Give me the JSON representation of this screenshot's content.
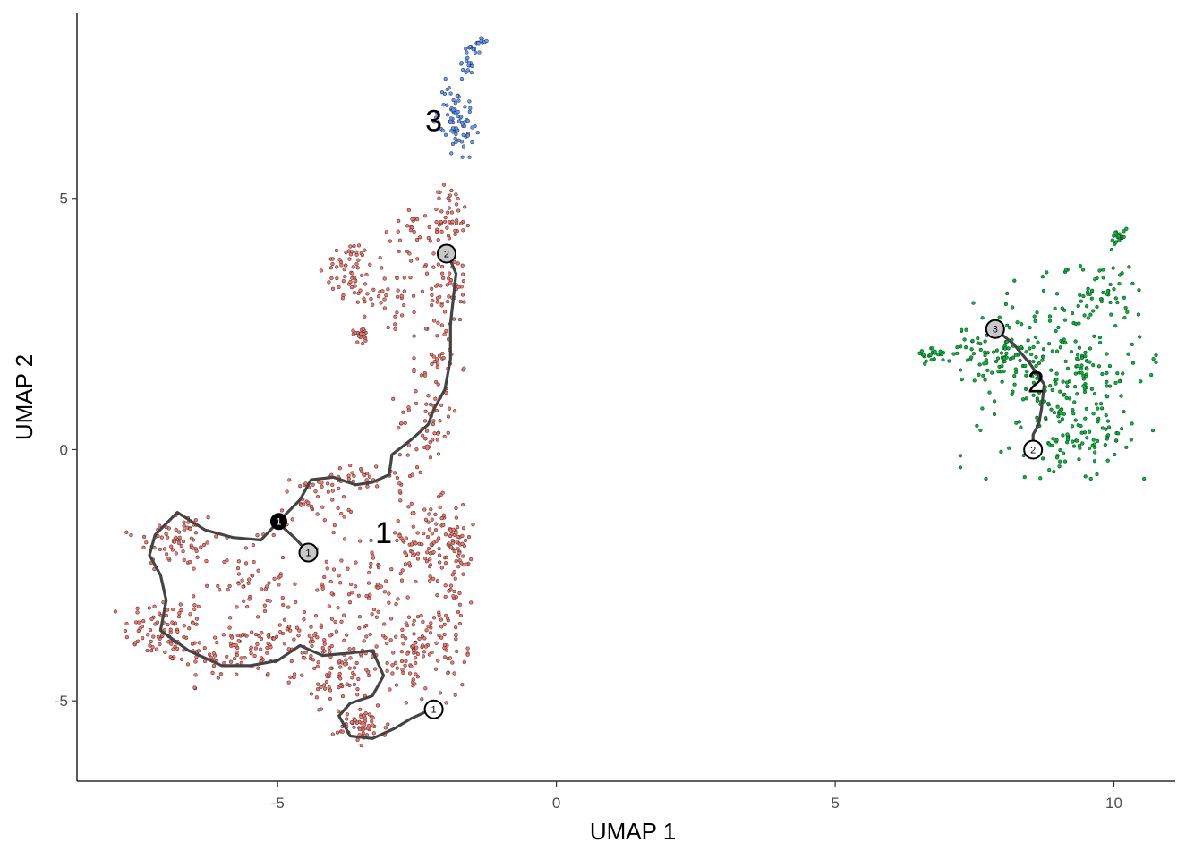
{
  "chart_data": {
    "type": "scatter",
    "title": "",
    "xlabel": "UMAP 1",
    "ylabel": "UMAP 2",
    "xlim": [
      -8.6,
      11.1
    ],
    "ylim": [
      -6.6,
      8.7
    ],
    "x_ticks": [
      -5,
      0,
      5,
      10
    ],
    "y_ticks": [
      -5,
      0,
      5
    ],
    "x_tick_labels": [
      "-5",
      "0",
      "5",
      "10"
    ],
    "y_tick_labels": [
      "-5",
      "0",
      "5"
    ],
    "grid": false,
    "legend": "none",
    "point_outline_color": "#1a1a1a",
    "trajectory_color": "#444444",
    "clusters": [
      {
        "label": "1",
        "label_pos": [
          -3.1,
          -1.65
        ],
        "color": "#F8766D",
        "regions": [
          {
            "cx": -7.0,
            "cy": -3.6,
            "rx": 0.7,
            "ry": 0.6,
            "n": 90
          },
          {
            "cx": -6.8,
            "cy": -1.8,
            "rx": 0.7,
            "ry": 0.6,
            "n": 70
          },
          {
            "cx": -5.8,
            "cy": -4.1,
            "rx": 0.8,
            "ry": 0.5,
            "n": 60
          },
          {
            "cx": -5.6,
            "cy": -2.6,
            "rx": 0.7,
            "ry": 0.7,
            "n": 50
          },
          {
            "cx": -4.8,
            "cy": -3.7,
            "rx": 0.9,
            "ry": 0.6,
            "n": 70
          },
          {
            "cx": -4.3,
            "cy": -1.0,
            "rx": 0.6,
            "ry": 0.5,
            "n": 45
          },
          {
            "cx": -3.9,
            "cy": -4.4,
            "rx": 0.7,
            "ry": 0.6,
            "n": 90
          },
          {
            "cx": -3.5,
            "cy": -5.5,
            "rx": 0.45,
            "ry": 0.3,
            "n": 55
          },
          {
            "cx": -3.6,
            "cy": -2.7,
            "rx": 0.7,
            "ry": 0.8,
            "n": 60
          },
          {
            "cx": -2.5,
            "cy": -4.0,
            "rx": 0.7,
            "ry": 0.8,
            "n": 110
          },
          {
            "cx": -2.4,
            "cy": -1.9,
            "rx": 0.7,
            "ry": 0.8,
            "n": 90
          },
          {
            "cx": -1.9,
            "cy": -3.0,
            "rx": 0.3,
            "ry": 1.9,
            "n": 50
          },
          {
            "cx": -1.8,
            "cy": -1.7,
            "rx": 0.25,
            "ry": 0.6,
            "n": 30
          },
          {
            "cx": -3.3,
            "cy": -0.5,
            "rx": 0.7,
            "ry": 0.3,
            "n": 35
          },
          {
            "cx": -2.3,
            "cy": 0.5,
            "rx": 0.5,
            "ry": 0.7,
            "n": 50
          },
          {
            "cx": -2.1,
            "cy": 1.7,
            "rx": 0.35,
            "ry": 0.9,
            "n": 40
          },
          {
            "cx": -2.0,
            "cy": 3.3,
            "rx": 0.45,
            "ry": 0.8,
            "n": 60
          },
          {
            "cx": -1.9,
            "cy": 4.7,
            "rx": 0.35,
            "ry": 0.5,
            "n": 40
          },
          {
            "cx": -3.7,
            "cy": 3.6,
            "rx": 0.4,
            "ry": 0.5,
            "n": 55
          },
          {
            "cx": -3.0,
            "cy": 3.1,
            "rx": 0.5,
            "ry": 0.6,
            "n": 40
          },
          {
            "cx": -3.5,
            "cy": 2.3,
            "rx": 0.15,
            "ry": 0.15,
            "n": 20
          },
          {
            "cx": -2.6,
            "cy": 4.4,
            "rx": 0.5,
            "ry": 0.4,
            "n": 25
          }
        ],
        "trajectory": [
          [
            -5.0,
            -1.45
          ],
          [
            -4.6,
            -1.0
          ],
          [
            -4.4,
            -0.6
          ],
          [
            -4.0,
            -0.55
          ],
          [
            -3.6,
            -0.7
          ],
          [
            -3.3,
            -0.65
          ],
          [
            -3.0,
            -0.5
          ],
          [
            -2.95,
            -0.1
          ],
          [
            -2.6,
            0.2
          ],
          [
            -2.3,
            0.5
          ],
          [
            -2.2,
            0.8
          ],
          [
            -2.0,
            1.2
          ],
          [
            -1.9,
            1.8
          ],
          [
            -1.9,
            2.5
          ],
          [
            -1.85,
            3.0
          ],
          [
            -1.8,
            3.5
          ],
          [
            -1.95,
            3.9
          ]
        ],
        "trajectory_loop": [
          [
            -5.0,
            -1.45
          ],
          [
            -5.3,
            -1.8
          ],
          [
            -5.8,
            -1.75
          ],
          [
            -6.3,
            -1.6
          ],
          [
            -6.8,
            -1.25
          ],
          [
            -7.2,
            -1.7
          ],
          [
            -7.3,
            -2.1
          ],
          [
            -7.1,
            -2.5
          ],
          [
            -7.0,
            -3.0
          ],
          [
            -7.1,
            -3.6
          ],
          [
            -6.6,
            -4.0
          ],
          [
            -6.0,
            -4.3
          ],
          [
            -5.5,
            -4.3
          ],
          [
            -5.0,
            -4.2
          ],
          [
            -4.6,
            -3.9
          ],
          [
            -4.2,
            -4.1
          ],
          [
            -3.7,
            -4.05
          ],
          [
            -3.3,
            -4.0
          ],
          [
            -3.1,
            -4.5
          ],
          [
            -3.3,
            -4.9
          ],
          [
            -3.7,
            -5.05
          ],
          [
            -3.9,
            -5.3
          ],
          [
            -3.7,
            -5.7
          ],
          [
            -3.3,
            -5.75
          ],
          [
            -2.9,
            -5.55
          ],
          [
            -2.6,
            -5.35
          ],
          [
            -2.2,
            -5.15
          ]
        ],
        "trajectory_branch": [
          [
            -5.0,
            -1.45
          ],
          [
            -4.7,
            -1.75
          ],
          [
            -4.45,
            -2.05
          ]
        ],
        "nodes": [
          {
            "x": -4.98,
            "y": -1.43,
            "label": "1",
            "kind": "branch"
          },
          {
            "x": -4.45,
            "y": -2.05,
            "label": "1",
            "kind": "leaf"
          },
          {
            "x": -1.97,
            "y": 3.9,
            "label": "2",
            "kind": "leaf"
          },
          {
            "x": -2.2,
            "y": -5.17,
            "label": "1",
            "kind": "root"
          }
        ]
      },
      {
        "label": "2",
        "label_pos": [
          8.6,
          1.35
        ],
        "color": "#00BA38",
        "regions": [
          {
            "cx": 9.0,
            "cy": 1.5,
            "rx": 1.35,
            "ry": 1.6,
            "n": 280
          },
          {
            "cx": 9.8,
            "cy": 3.2,
            "rx": 0.5,
            "ry": 0.6,
            "n": 40
          },
          {
            "cx": 10.1,
            "cy": 4.2,
            "rx": 0.15,
            "ry": 0.15,
            "n": 18
          },
          {
            "cx": 6.8,
            "cy": 1.9,
            "rx": 0.3,
            "ry": 0.15,
            "n": 25
          },
          {
            "cx": 7.8,
            "cy": 2.0,
            "rx": 0.6,
            "ry": 0.5,
            "n": 50
          },
          {
            "cx": 9.4,
            "cy": 0.2,
            "rx": 0.7,
            "ry": 0.4,
            "n": 50
          }
        ],
        "trajectory": [
          [
            7.87,
            2.4
          ],
          [
            8.2,
            2.1
          ],
          [
            8.5,
            1.7
          ],
          [
            8.75,
            1.3
          ],
          [
            8.7,
            0.8
          ],
          [
            8.65,
            0.5
          ],
          [
            8.55,
            0.3
          ],
          [
            8.55,
            0.0
          ]
        ],
        "nodes": [
          {
            "x": 7.87,
            "y": 2.4,
            "label": "3",
            "kind": "leaf"
          },
          {
            "x": 8.55,
            "y": -0.0,
            "label": "2",
            "kind": "root"
          }
        ]
      },
      {
        "label": "3",
        "label_pos": [
          -2.2,
          6.55
        ],
        "color": "#619CFF",
        "regions": [
          {
            "cx": -1.8,
            "cy": 6.6,
            "rx": 0.3,
            "ry": 0.6,
            "n": 80
          },
          {
            "cx": -1.6,
            "cy": 7.6,
            "rx": 0.1,
            "ry": 0.15,
            "n": 15
          },
          {
            "cx": -1.5,
            "cy": 8.0,
            "rx": 0.15,
            "ry": 0.1,
            "n": 12
          },
          {
            "cx": -1.35,
            "cy": 8.15,
            "rx": 0.08,
            "ry": 0.06,
            "n": 8
          }
        ],
        "trajectory": [],
        "nodes": []
      }
    ]
  }
}
